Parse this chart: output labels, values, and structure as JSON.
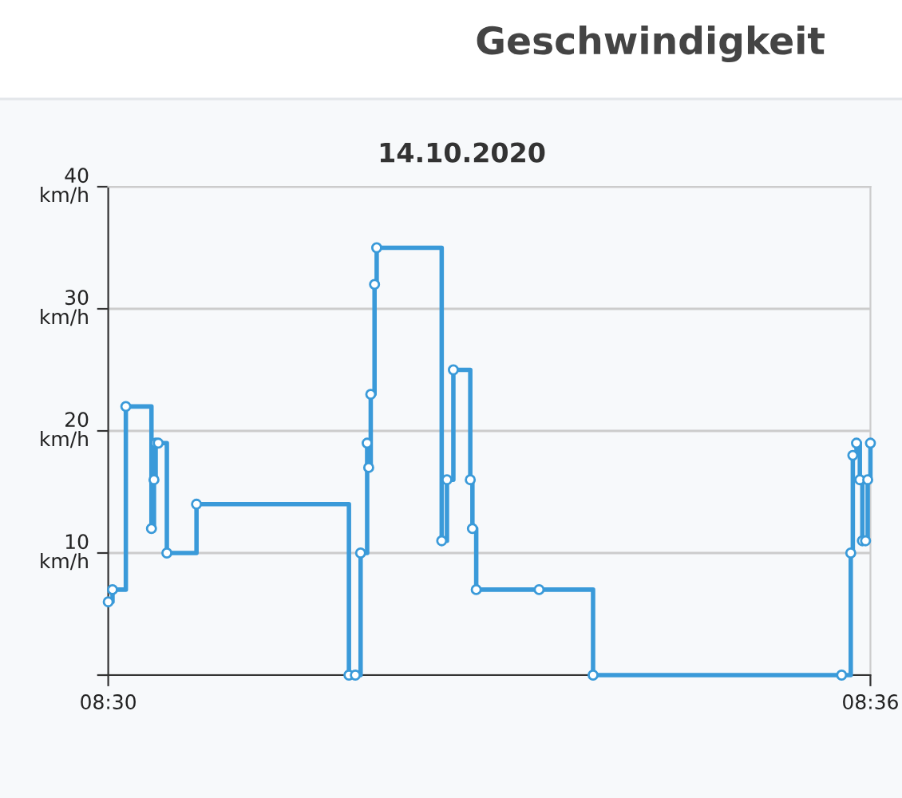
{
  "chart_data": {
    "type": "step",
    "title": "Geschwindigkeit",
    "subtitle": "14.10.2020",
    "x": [
      8.5,
      8.50056,
      8.50231,
      8.50567,
      8.506,
      8.50622,
      8.50656,
      8.50769,
      8.51158,
      8.53158,
      8.53242,
      8.53311,
      8.53397,
      8.53417,
      8.53444,
      8.53494,
      8.53522,
      8.54375,
      8.54444,
      8.54528,
      8.5475,
      8.54778,
      8.54828,
      8.55653,
      8.56361,
      8.59622,
      8.59742,
      8.59769,
      8.59817,
      8.59861,
      8.59894,
      8.59936,
      8.59964,
      8.6
    ],
    "series": [
      {
        "color": "#3a9ad9",
        "values": [
          6,
          7,
          22,
          12,
          16,
          19,
          19,
          10,
          14,
          0,
          0,
          10,
          19,
          17,
          23,
          32,
          35,
          11,
          16,
          25,
          16,
          12,
          7,
          7,
          0,
          0,
          10,
          18,
          19,
          16,
          11,
          11,
          16,
          19
        ]
      }
    ],
    "xlim": [
      8.5,
      8.6
    ],
    "xticks": [
      {
        "value": 8.5,
        "label": "08:30"
      },
      {
        "value": 8.6,
        "label": "08:36"
      }
    ],
    "ylim": [
      0,
      40
    ],
    "yticks": [
      {
        "value": 0,
        "label": null
      },
      {
        "value": 10,
        "label": "10\nkm/h"
      },
      {
        "value": 20,
        "label": "20\nkm/h"
      },
      {
        "value": 30,
        "label": "30\nkm/h"
      },
      {
        "value": 40,
        "label": "40\nkm/h"
      }
    ],
    "grid": "y",
    "marker": "circle",
    "line_style": "solid"
  }
}
